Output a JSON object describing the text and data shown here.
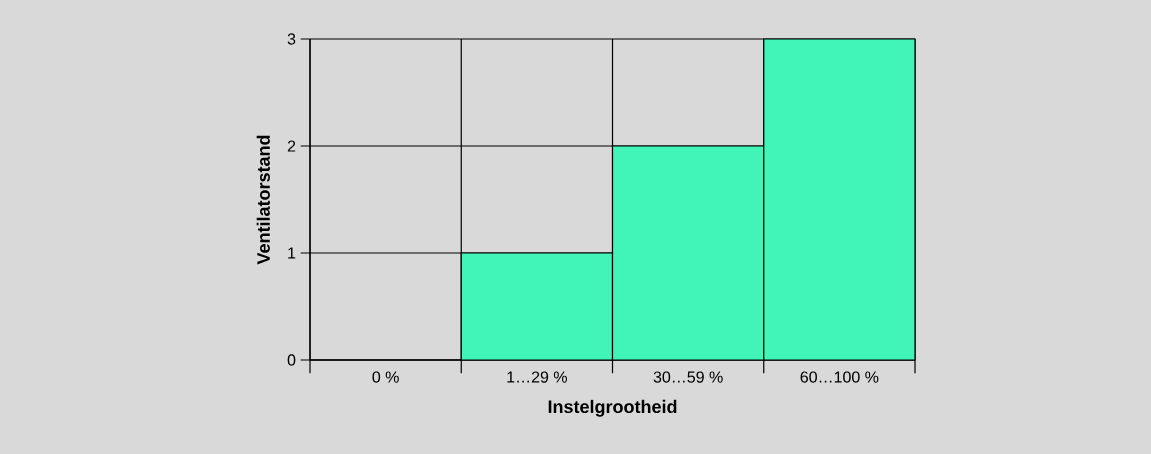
{
  "chart_data": {
    "type": "bar",
    "categories": [
      "0 %",
      "1…29 %",
      "30…59 %",
      "60…100 %"
    ],
    "values": [
      0,
      1,
      2,
      3
    ],
    "color": "#40f5b7",
    "xlabel": "Instelgrootheid",
    "ylabel": "Ventilatorstand",
    "ylim": [
      0,
      3
    ],
    "yticks": [
      0,
      1,
      2,
      3
    ],
    "grid": true
  }
}
